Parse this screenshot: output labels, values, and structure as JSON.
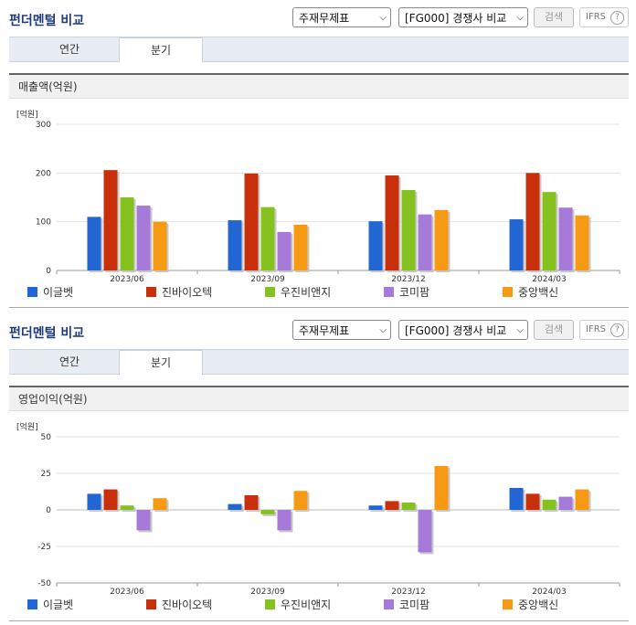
{
  "panels": [
    {
      "title": "펀더멘털 비교",
      "select1": "주재무제표",
      "select2": "[FG000] 경쟁사 비교",
      "search_label": "검색",
      "ifrs_label": "IFRS",
      "help_icon": "question-mark-icon",
      "tabs": [
        "연간",
        "분기"
      ],
      "active_tab": "분기",
      "section_title": "매출액(억원)"
    },
    {
      "title": "펀더멘털 비교",
      "select1": "주재무제표",
      "select2": "[FG000] 경쟁사 비교",
      "search_label": "검색",
      "ifrs_label": "IFRS",
      "help_icon": "question-mark-icon",
      "tabs": [
        "연간",
        "분기"
      ],
      "active_tab": "분기",
      "section_title": "영업이익(억원)"
    }
  ],
  "colors": {
    "이글벳": "#2266d4",
    "진바이오텍": "#c8300c",
    "우진비앤지": "#86c21f",
    "코미팜": "#a57ad8",
    "중앙백신": "#f79a13"
  },
  "chart_data": [
    {
      "type": "bar",
      "unit": "[억원]",
      "categories": [
        "2023/06",
        "2023/09",
        "2023/12",
        "2024/03"
      ],
      "ylim": [
        0,
        300
      ],
      "yticks": [
        "300",
        "200",
        "100",
        "0"
      ],
      "grid": true,
      "legend_position": "bottom",
      "series": [
        {
          "name": "이글벳",
          "values": [
            110,
            103,
            101,
            105
          ]
        },
        {
          "name": "진바이오텍",
          "values": [
            206,
            199,
            195,
            200
          ]
        },
        {
          "name": "우진비앤지",
          "values": [
            150,
            130,
            165,
            161
          ]
        },
        {
          "name": "코미팜",
          "values": [
            133,
            79,
            115,
            129
          ]
        },
        {
          "name": "중앙백신",
          "values": [
            100,
            94,
            124,
            113
          ]
        }
      ]
    },
    {
      "type": "bar",
      "unit": "[억원]",
      "categories": [
        "2023/06",
        "2023/09",
        "2023/12",
        "2024/03"
      ],
      "ylim": [
        -50,
        50
      ],
      "yticks": [
        "50",
        "25",
        "0",
        "-25",
        "-50"
      ],
      "grid": true,
      "legend_position": "bottom",
      "series": [
        {
          "name": "이글벳",
          "values": [
            11,
            4,
            3,
            15
          ]
        },
        {
          "name": "진바이오텍",
          "values": [
            14,
            10,
            6,
            11
          ]
        },
        {
          "name": "우진비앤지",
          "values": [
            3,
            -3,
            5,
            7
          ]
        },
        {
          "name": "코미팜",
          "values": [
            -14,
            -14,
            -29,
            9
          ]
        },
        {
          "name": "중앙백신",
          "values": [
            8,
            13,
            30,
            14
          ]
        }
      ]
    }
  ]
}
